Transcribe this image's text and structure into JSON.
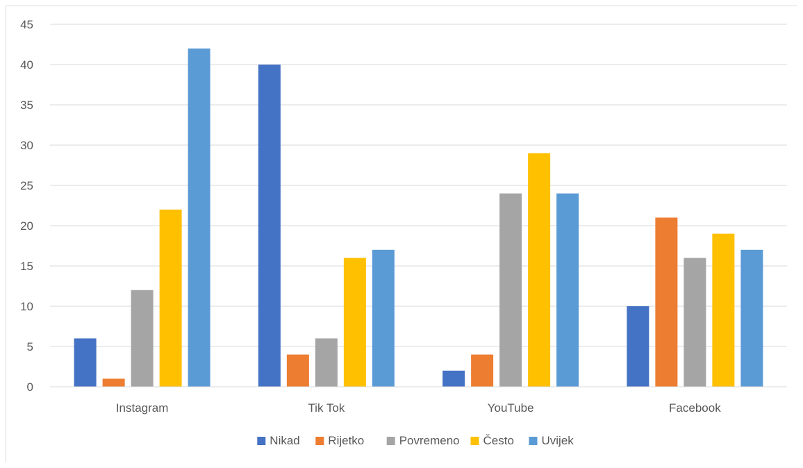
{
  "chart_data": {
    "type": "bar",
    "title": "",
    "xlabel": "",
    "ylabel": "",
    "categories": [
      "Instagram",
      "Tik Tok",
      "YouTube",
      "Facebook"
    ],
    "ylim": [
      0,
      45
    ],
    "yticks": [
      0,
      5,
      10,
      15,
      20,
      25,
      30,
      35,
      40,
      45
    ],
    "grid": true,
    "legend_position": "bottom",
    "series": [
      {
        "name": "Nikad",
        "color": "#4472c4",
        "values": [
          6,
          40,
          2,
          10
        ]
      },
      {
        "name": "Rijetko",
        "color": "#ed7d31",
        "values": [
          1,
          4,
          4,
          21
        ]
      },
      {
        "name": "Povremeno",
        "color": "#a5a5a5",
        "values": [
          12,
          6,
          24,
          16
        ]
      },
      {
        "name": "Često",
        "color": "#ffc000",
        "values": [
          22,
          16,
          29,
          19
        ]
      },
      {
        "name": "Uvijek",
        "color": "#5b9bd5",
        "values": [
          42,
          17,
          24,
          17
        ]
      }
    ]
  }
}
